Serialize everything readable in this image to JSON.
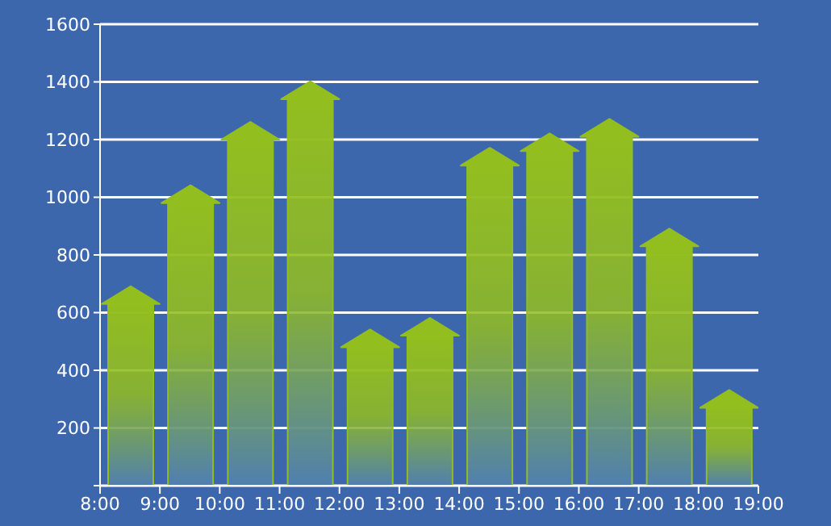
{
  "chart_data": {
    "type": "bar",
    "x": [
      8.5,
      9.5,
      10.5,
      11.5,
      12.5,
      13.5,
      14.5,
      15.5,
      16.5,
      17.5,
      18.5
    ],
    "values": [
      630,
      980,
      1200,
      1340,
      480,
      520,
      1110,
      1160,
      1210,
      830,
      270
    ],
    "color": "#93be1f",
    "xlim": [
      8,
      19
    ],
    "xticks": [
      {
        "value": 8,
        "label": "8:00"
      },
      {
        "value": 9,
        "label": "9:00"
      },
      {
        "value": 10,
        "label": "10:00"
      },
      {
        "value": 11,
        "label": "11:00"
      },
      {
        "value": 12,
        "label": "12:00"
      },
      {
        "value": 13,
        "label": "13:00"
      },
      {
        "value": 14,
        "label": "14:00"
      },
      {
        "value": 15,
        "label": "15:00"
      },
      {
        "value": 16,
        "label": "16:00"
      },
      {
        "value": 17,
        "label": "17:00"
      },
      {
        "value": 18,
        "label": "18:00"
      },
      {
        "value": 19,
        "label": "19:00"
      }
    ],
    "ylim": [
      0,
      1600
    ],
    "yticks": [
      {
        "value": 0,
        "label": null
      },
      200,
      400,
      600,
      800,
      1000,
      1200,
      1400,
      1600
    ],
    "grid": "y"
  }
}
